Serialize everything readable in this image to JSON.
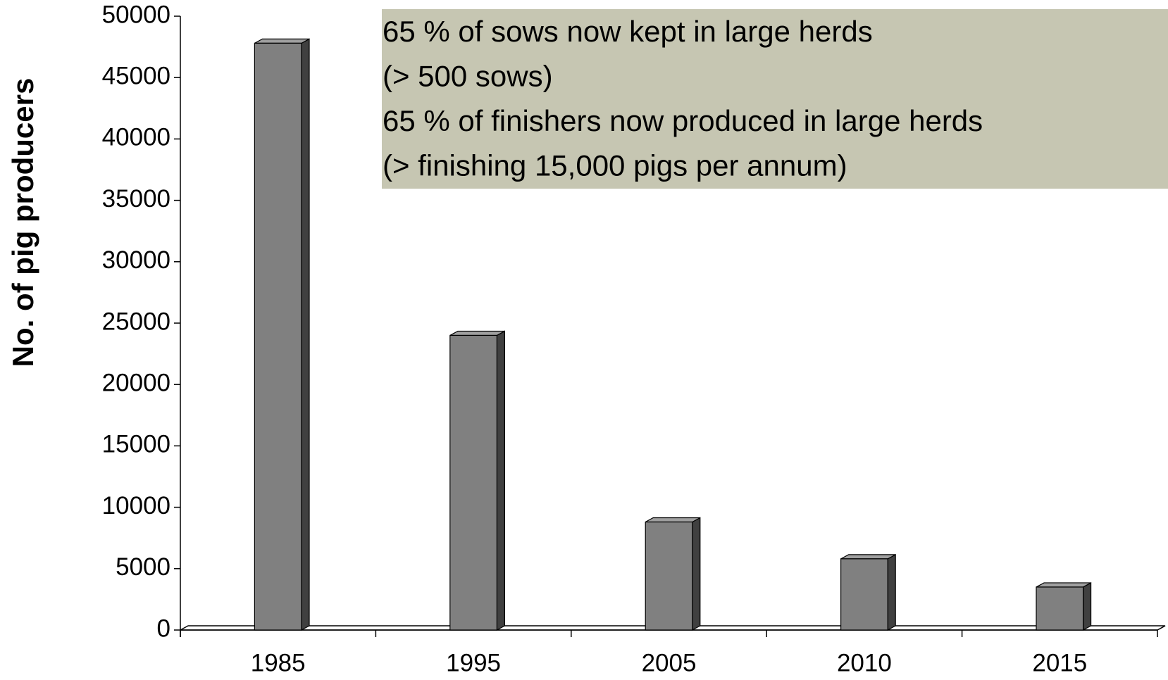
{
  "chart_data": {
    "type": "bar",
    "y_label": "No. of pig producers",
    "annotation": [
      "65 % of sows now kept in large herds",
      "(> 500 sows)",
      "65 % of finishers now produced in large herds",
      "(> finishing 15,000 pigs per annum)"
    ],
    "categories": [
      "1985",
      "1995",
      "2005",
      "2010",
      "2015"
    ],
    "values": [
      47800,
      24000,
      8800,
      5800,
      3500
    ],
    "color": "#808080",
    "ylim": [
      0,
      50000
    ],
    "yticks": [
      0,
      5000,
      10000,
      15000,
      20000,
      25000,
      30000,
      35000,
      40000,
      45000,
      50000
    ],
    "grid": false
  }
}
